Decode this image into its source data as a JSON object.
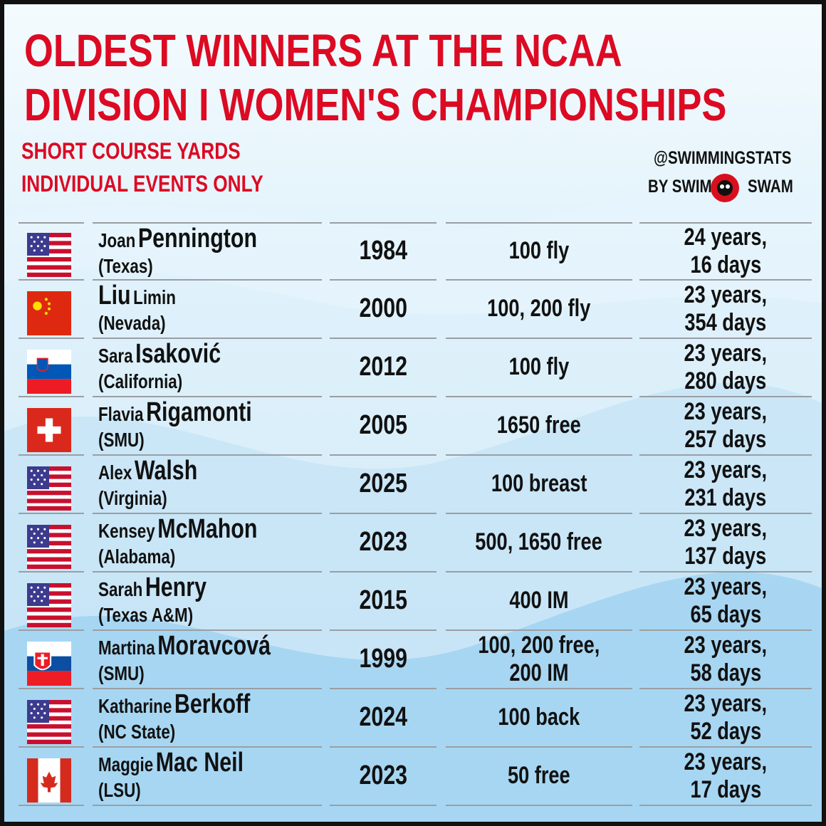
{
  "header": {
    "title": [
      "OLDEST WINNERS AT THE NCAA",
      "DIVISION I WOMEN'S CHAMPIONSHIPS"
    ],
    "subtitle": [
      "SHORT COURSE YARDS",
      "INDIVIDUAL EVENTS ONLY"
    ],
    "credit": {
      "handle": "@SWIMMINGSTATS",
      "by_left": "BY SWIM",
      "by_right": "SWAM"
    }
  },
  "table": {
    "rows": [
      {
        "name": [
          {
            "text": "Joan",
            "big": false
          },
          {
            "text": "Pennington",
            "big": true
          }
        ],
        "school": "(Texas)",
        "year": "1984",
        "event": [
          "100 fly"
        ],
        "age": [
          "24 years,",
          "16 days"
        ]
      },
      {
        "name": [
          {
            "text": "Liu",
            "big": true
          },
          {
            "text": "Limin",
            "big": false
          }
        ],
        "school": "(Nevada)",
        "year": "2000",
        "event": [
          "100, 200 fly"
        ],
        "age": [
          "23 years,",
          "354 days"
        ]
      },
      {
        "name": [
          {
            "text": "Sara",
            "big": false
          },
          {
            "text": "Isaković",
            "big": true
          }
        ],
        "school": "(California)",
        "year": "2012",
        "event": [
          "100 fly"
        ],
        "age": [
          "23 years,",
          "280 days"
        ]
      },
      {
        "name": [
          {
            "text": "Flavia",
            "big": false
          },
          {
            "text": "Rigamonti",
            "big": true
          }
        ],
        "school": "(SMU)",
        "year": "2005",
        "event": [
          "1650 free"
        ],
        "age": [
          "23 years,",
          "257 days"
        ]
      },
      {
        "name": [
          {
            "text": "Alex",
            "big": false
          },
          {
            "text": "Walsh",
            "big": true
          }
        ],
        "school": "(Virginia)",
        "year": "2025",
        "event": [
          "100 breast"
        ],
        "age": [
          "23 years,",
          "231 days"
        ]
      },
      {
        "name": [
          {
            "text": "Kensey",
            "big": false
          },
          {
            "text": "McMahon",
            "big": true
          }
        ],
        "school": "(Alabama)",
        "year": "2023",
        "event": [
          "500, 1650 free"
        ],
        "age": [
          "23 years,",
          "137 days"
        ]
      },
      {
        "name": [
          {
            "text": "Sarah",
            "big": false
          },
          {
            "text": "Henry",
            "big": true
          }
        ],
        "school": "(Texas A&M)",
        "year": "2015",
        "event": [
          "400 IM"
        ],
        "age": [
          "23 years,",
          "65 days"
        ]
      },
      {
        "name": [
          {
            "text": "Martina",
            "big": false
          },
          {
            "text": "Moravcová",
            "big": true
          }
        ],
        "school": "(SMU)",
        "year": "1999",
        "event": [
          "100, 200 free,",
          "200 IM"
        ],
        "age": [
          "23 years,",
          "58 days"
        ]
      },
      {
        "name": [
          {
            "text": "Katharine",
            "big": false
          },
          {
            "text": "Berkoff",
            "big": true
          }
        ],
        "school": "(NC State)",
        "year": "2024",
        "event": [
          "100 back"
        ],
        "age": [
          "23 years,",
          "52 days"
        ]
      },
      {
        "name": [
          {
            "text": "Maggie",
            "big": false
          },
          {
            "text": "Mac Neil",
            "big": true
          }
        ],
        "school": "(LSU)",
        "year": "2023",
        "event": [
          "50 free"
        ],
        "age": [
          "23 years,",
          "17 days"
        ]
      }
    ]
  }
}
